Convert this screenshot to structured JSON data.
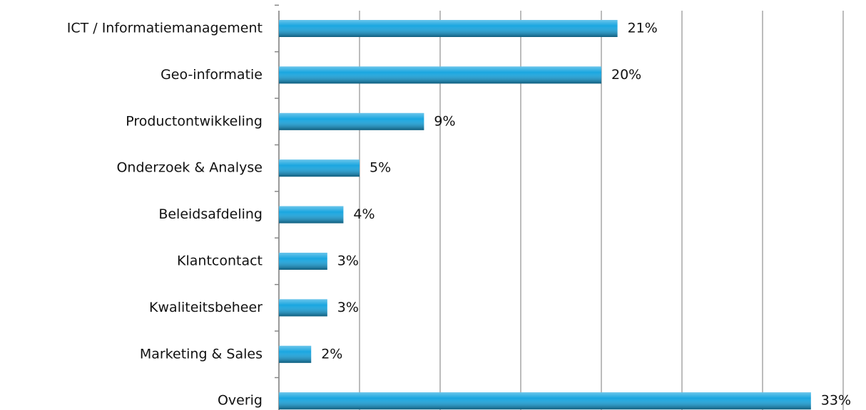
{
  "chart_data": {
    "type": "bar",
    "orientation": "horizontal",
    "categories": [
      "ICT / Informatiemanagement",
      "Geo-informatie",
      "Productontwikkeling",
      "Onderzoek & Analyse",
      "Beleidsafdeling",
      "Klantcontact",
      "Kwaliteitsbeheer",
      "Marketing & Sales",
      "Overig"
    ],
    "values": [
      21,
      20,
      9,
      5,
      4,
      3,
      3,
      2,
      33
    ],
    "value_labels": [
      "21%",
      "20%",
      "9%",
      "5%",
      "4%",
      "3%",
      "3%",
      "2%",
      "33%"
    ],
    "color": "#1aa6e0",
    "xlim": [
      0,
      35
    ],
    "xticks": [
      0,
      5,
      10,
      15,
      20,
      25,
      30,
      35
    ],
    "grid": true
  }
}
